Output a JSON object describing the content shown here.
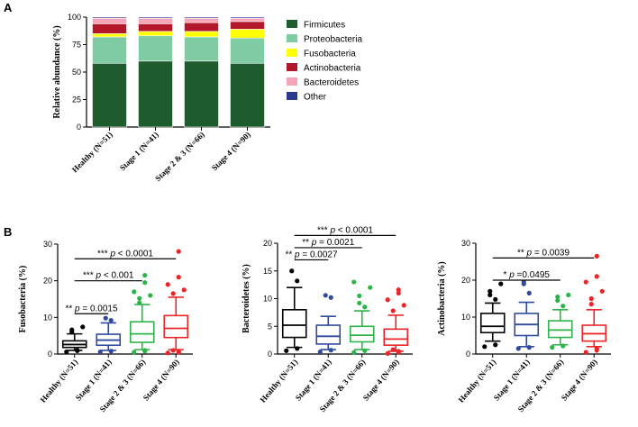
{
  "panel_labels": {
    "a": "A",
    "b": "B"
  },
  "chart_data": [
    {
      "panel": "A",
      "type": "bar",
      "stacked": true,
      "ylabel": "Relative abundance (%)",
      "ylim": [
        0,
        100
      ],
      "yticks": [
        "0",
        "25",
        "50",
        "75",
        "100"
      ],
      "categories": [
        "Healthy (N=51)",
        "Stage 1 (N=41)",
        "Stage 2 & 3 (N=66)",
        "Stage 4 (N=90)"
      ],
      "legend_position": "right",
      "series": [
        {
          "name": "Firmicutes",
          "color": "#1e5c2e",
          "values": [
            58,
            60,
            60,
            58
          ]
        },
        {
          "name": "Proteobacteria",
          "color": "#7fcba4",
          "values": [
            24,
            23,
            22,
            23
          ]
        },
        {
          "name": "Fusobacteria",
          "color": "#ffff00",
          "values": [
            3,
            4,
            5,
            8
          ]
        },
        {
          "name": "Actinobacteria",
          "color": "#b3182a",
          "values": [
            9,
            7,
            8,
            7
          ]
        },
        {
          "name": "Bacteroidetes",
          "color": "#f4a6b8",
          "values": [
            5,
            5,
            4,
            3
          ]
        },
        {
          "name": "Other",
          "color": "#2b3990",
          "values": [
            1,
            1,
            1,
            1
          ]
        }
      ]
    },
    {
      "panel": "B1",
      "type": "box",
      "ylabel": "Fusobacteria (%)",
      "ylim": [
        0,
        30
      ],
      "yticks": [
        "0",
        "10",
        "20",
        "30"
      ],
      "categories": [
        "Healthy (N=51)",
        "Stage 1 (N=41)",
        "Stage 2 & 3 (N=66)",
        "Stage 4 (N=90)"
      ],
      "colors": [
        "#000000",
        "#2e4a9e",
        "#2db34a",
        "#e8262a"
      ],
      "boxes": [
        {
          "whisker_low": 1,
          "q1": 1.8,
          "median": 2.6,
          "q3": 3.6,
          "whisker_high": 5.5,
          "outliers": [
            0.6,
            0.9,
            1.0,
            6.0,
            6.6,
            7.4
          ]
        },
        {
          "whisker_low": 1,
          "q1": 2.4,
          "median": 3.8,
          "q3": 5.4,
          "whisker_high": 8.5,
          "outliers": [
            0.6,
            0.8,
            9.2,
            9.8
          ]
        },
        {
          "whisker_low": 1.2,
          "q1": 3.2,
          "median": 5.5,
          "q3": 8.8,
          "whisker_high": 13.5,
          "outliers": [
            0.5,
            0.8,
            1.0,
            14.0,
            15.2,
            16.0,
            17.0,
            19.5,
            21.5
          ]
        },
        {
          "whisker_low": 1.2,
          "q1": 4.5,
          "median": 7.0,
          "q3": 10.5,
          "whisker_high": 15.5,
          "outliers": [
            0.3,
            0.5,
            0.8,
            1.0,
            16.5,
            17.5,
            19.0,
            21.0,
            28.0
          ]
        }
      ],
      "significance": [
        {
          "from": 0,
          "to": 1,
          "y": 11,
          "stars": "**",
          "p": "p",
          "rest": " = 0.0015"
        },
        {
          "from": 0,
          "to": 2,
          "y": 20,
          "stars": "***",
          "p": "p",
          "rest": " < 0.001"
        },
        {
          "from": 0,
          "to": 3,
          "y": 26,
          "stars": "***",
          "p": "p",
          "rest": " < 0.0001"
        }
      ]
    },
    {
      "panel": "B2",
      "type": "box",
      "ylabel": "Bacteroidetes (%)",
      "ylim": [
        0,
        20
      ],
      "yticks": [
        "0",
        "5",
        "10",
        "15",
        "20"
      ],
      "categories": [
        "Healthy (N=51)",
        "Stage 1 (N=41)",
        "Stage 2 & 3 (N=66)",
        "Stage 4 (N=90)"
      ],
      "colors": [
        "#000000",
        "#2e4a9e",
        "#2db34a",
        "#e8262a"
      ],
      "boxes": [
        {
          "whisker_low": 1.2,
          "q1": 3.0,
          "median": 5.2,
          "q3": 8.0,
          "whisker_high": 12.0,
          "outliers": [
            0.6,
            1.0,
            13.2,
            15.0
          ]
        },
        {
          "whisker_low": 0.8,
          "q1": 1.8,
          "median": 3.2,
          "q3": 5.2,
          "whisker_high": 6.8,
          "outliers": [
            0.4,
            0.7,
            10.2,
            10.6
          ]
        },
        {
          "whisker_low": 0.8,
          "q1": 2.2,
          "median": 3.4,
          "q3": 5.0,
          "whisker_high": 7.8,
          "outliers": [
            0.3,
            0.6,
            8.5,
            9.2,
            10.5,
            12.0,
            13.0
          ]
        },
        {
          "whisker_low": 0.5,
          "q1": 1.6,
          "median": 2.7,
          "q3": 4.5,
          "whisker_high": 7.0,
          "outliers": [
            0.1,
            0.3,
            0.5,
            0.8,
            7.8,
            8.8,
            9.8,
            11.0,
            11.6
          ]
        }
      ],
      "significance": [
        {
          "from": 0,
          "to": 1,
          "y": 17,
          "stars": "**",
          "p": "p",
          "rest": " = 0.0027"
        },
        {
          "from": 0,
          "to": 2,
          "y": 19.2,
          "stars": "**",
          "p": "p",
          "rest": " = 0.0021"
        },
        {
          "from": 0,
          "to": 3,
          "y": 21.4,
          "stars": "***",
          "p": "p",
          "rest": " < 0.0001"
        }
      ]
    },
    {
      "panel": "B3",
      "type": "box",
      "ylabel": "Actinobacteria (%)",
      "ylim": [
        0,
        30
      ],
      "yticks": [
        "0",
        "10",
        "20",
        "30"
      ],
      "categories": [
        "Healthy (N=51)",
        "Stage 1 (N=41)",
        "Stage 2 & 3 (N=66)",
        "Stage 4 (N=90)"
      ],
      "colors": [
        "#000000",
        "#2e4a9e",
        "#2db34a",
        "#e8262a"
      ],
      "boxes": [
        {
          "whisker_low": 3.5,
          "q1": 5.8,
          "median": 7.5,
          "q3": 11.0,
          "whisker_high": 13.8,
          "outliers": [
            2.0,
            2.5,
            14.8,
            16.0,
            17.0,
            19.0
          ]
        },
        {
          "whisker_low": 2.0,
          "q1": 5.0,
          "median": 8.0,
          "q3": 11.0,
          "whisker_high": 14.0,
          "outliers": [
            1.5,
            1.8,
            16.5,
            19.0,
            19.5
          ]
        },
        {
          "whisker_low": 2.5,
          "q1": 4.5,
          "median": 6.5,
          "q3": 9.0,
          "whisker_high": 12.0,
          "outliers": [
            1.8,
            2.2,
            13.0,
            14.5,
            15.5,
            16.0
          ]
        },
        {
          "whisker_low": 2.0,
          "q1": 3.5,
          "median": 5.5,
          "q3": 7.8,
          "whisker_high": 12.0,
          "outliers": [
            0.5,
            1.0,
            1.5,
            13.5,
            15.0,
            17.0,
            19.5,
            21.0,
            26.5
          ]
        }
      ],
      "significance": [
        {
          "from": 0,
          "to": 2,
          "y": 20,
          "stars": "*",
          "p": "p",
          "rest": " =0.0495"
        },
        {
          "from": 0,
          "to": 3,
          "y": 26,
          "stars": "**",
          "p": "p",
          "rest": " = 0.0039"
        }
      ]
    }
  ]
}
